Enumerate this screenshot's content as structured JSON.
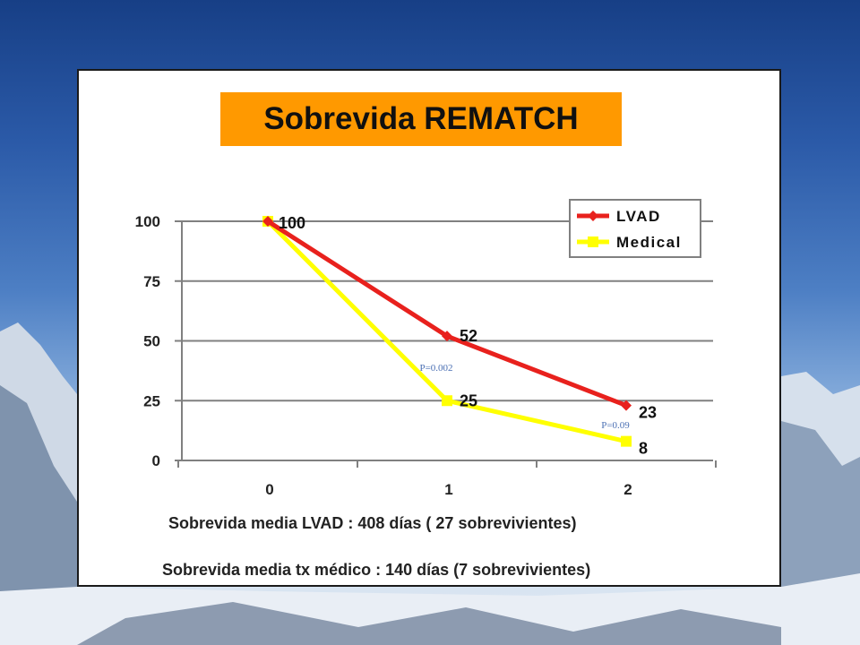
{
  "slide": {
    "title": "Sobrevida REMATCH",
    "captions": [
      "Sobrevida media LVAD : 408 días ( 27 sobrevivientes)",
      "Sobrevida media tx médico : 140 días (7 sobrevivientes)"
    ],
    "colors": {
      "title_bg": "#ff9900",
      "lvad": "#e8211d",
      "medical": "#ffff00",
      "pvalue": "#4a6fb3"
    }
  },
  "chart_data": {
    "type": "line",
    "x": [
      0,
      1,
      2
    ],
    "xticks": [
      "0",
      "1",
      "2"
    ],
    "yticks": [
      "0",
      "25",
      "50",
      "75",
      "100"
    ],
    "ylim": [
      0,
      100
    ],
    "grid": "horizontal",
    "legend_position": "top-right",
    "series": [
      {
        "name": "LVAD",
        "values": [
          100,
          52,
          23
        ],
        "labels": [
          "100",
          "52",
          "23"
        ],
        "color": "#e8211d",
        "marker": "diamond"
      },
      {
        "name": "Medical",
        "values": [
          100,
          25,
          8
        ],
        "labels": [
          "",
          "25",
          "8"
        ],
        "color": "#ffff00",
        "marker": "square"
      }
    ],
    "annotations": [
      {
        "text": "P=0.002",
        "x": 1,
        "y": 39
      },
      {
        "text": "P=0.09",
        "x": 2,
        "y": 15
      }
    ]
  }
}
